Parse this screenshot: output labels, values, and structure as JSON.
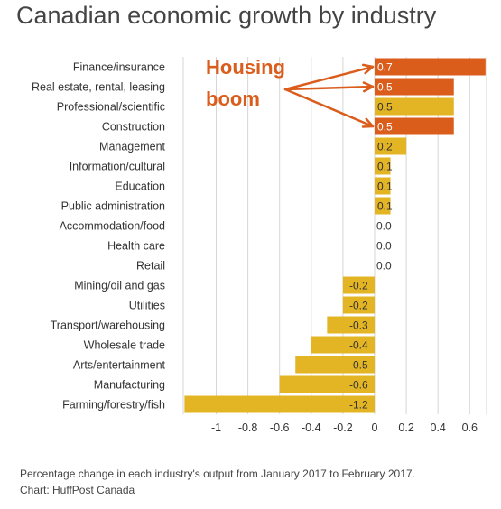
{
  "title": "Canadian economic growth by industry",
  "chart_data": {
    "type": "bar",
    "orientation": "horizontal",
    "categories": [
      "Finance/insurance",
      "Real estate, rental, leasing",
      "Professional/scientific",
      "Construction",
      "Management",
      "Information/cultural",
      "Education",
      "Public administration",
      "Accommodation/food",
      "Health care",
      "Retail",
      "Mining/oil and gas",
      "Utilities",
      "Transport/warehousing",
      "Wholesale trade",
      "Arts/entertainment",
      "Manufacturing",
      "Farming/forestry/fish"
    ],
    "values": [
      0.7,
      0.5,
      0.5,
      0.5,
      0.2,
      0.1,
      0.1,
      0.1,
      0.0,
      0.0,
      0.0,
      -0.2,
      -0.2,
      -0.3,
      -0.4,
      -0.5,
      -0.6,
      -1.2
    ],
    "value_labels": [
      "0.7",
      "0.5",
      "0.5",
      "0.5",
      "0.2",
      "0.1",
      "0.1",
      "0.1",
      "0.0",
      "0.0",
      "0.0",
      "-0.2",
      "-0.2",
      "-0.3",
      "-0.4",
      "-0.5",
      "-0.6",
      "-1.2"
    ],
    "highlighted": [
      "Finance/insurance",
      "Real estate, rental, leasing",
      "Construction"
    ],
    "xticks": [
      -1,
      -0.8,
      -0.6,
      -0.4,
      -0.2,
      0,
      0.2,
      0.4,
      0.6
    ],
    "xtick_labels": [
      "-1",
      "-0.8",
      "-0.6",
      "-0.4",
      "-0.2",
      "0",
      "0.2",
      "0.4",
      "0.6"
    ],
    "xlim": [
      -1.2,
      0.7
    ],
    "grid": true,
    "colors": {
      "default_bar": "#E3B423",
      "highlight_bar": "#DA5D1C",
      "annotation": "#DA5D1C",
      "grid": "#d6d6d6"
    },
    "annotation": {
      "lines": [
        "Housing",
        "boom"
      ],
      "points_to": [
        "Finance/insurance",
        "Real estate, rental, leasing",
        "Construction"
      ]
    }
  },
  "footnote": {
    "line1": "Percentage change in each industry's output from January 2017 to February 2017.",
    "line2": "Chart: HuffPost Canada"
  }
}
